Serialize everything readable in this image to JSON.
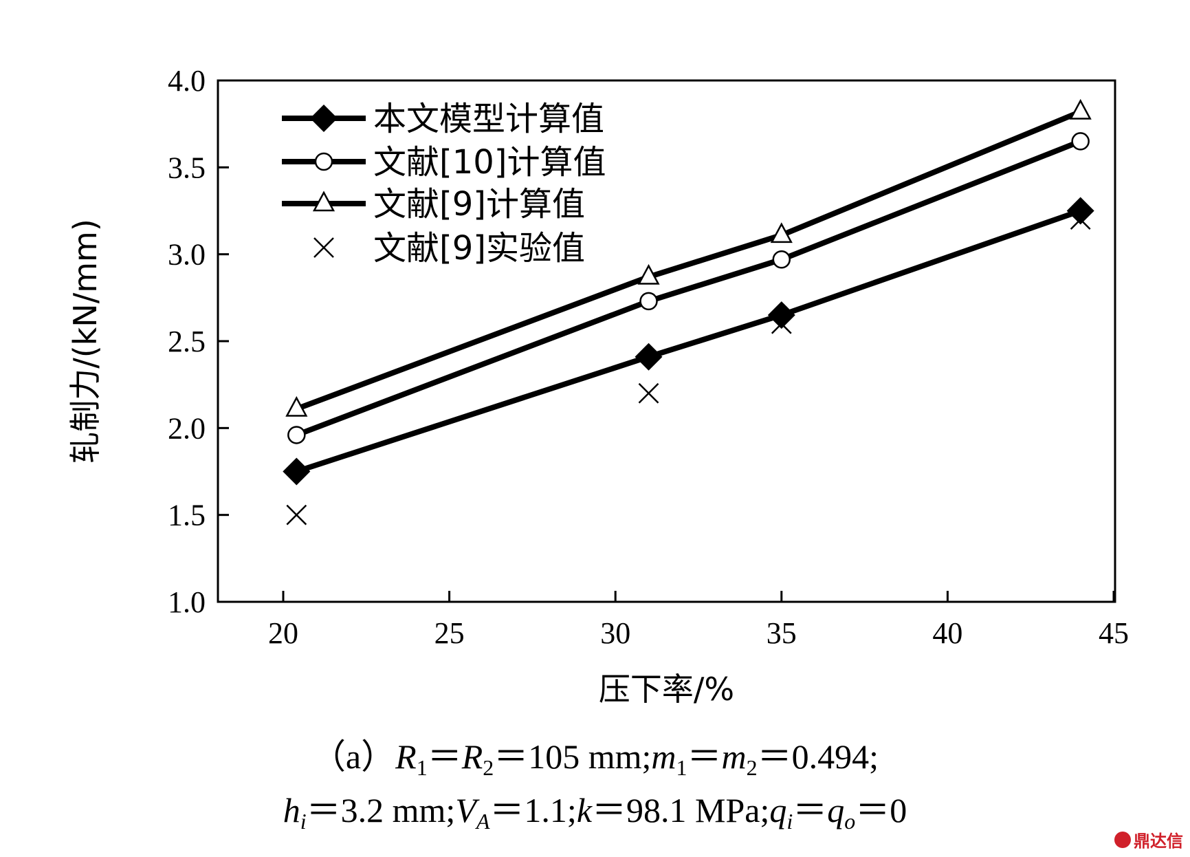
{
  "chart_data": {
    "type": "line",
    "xlabel": "压下率/%",
    "ylabel": "轧制力/(kN/mm)",
    "xlim": [
      18,
      45
    ],
    "ylim": [
      1.0,
      4.0
    ],
    "xticks": [
      20,
      25,
      30,
      35,
      40,
      45
    ],
    "yticks": [
      1.0,
      1.5,
      2.0,
      2.5,
      3.0,
      3.5,
      4.0
    ],
    "xtick_labels": [
      "20",
      "25",
      "30",
      "35",
      "40",
      "45"
    ],
    "ytick_labels": [
      "1.0",
      "1.5",
      "2.0",
      "2.5",
      "3.0",
      "3.5",
      "4.0"
    ],
    "grid": false,
    "legend_position": "top-left",
    "series": [
      {
        "name": "本文模型计算值",
        "marker": "diamond-filled",
        "line": true,
        "x": [
          20.4,
          31,
          35,
          44
        ],
        "y": [
          1.75,
          2.41,
          2.65,
          3.25
        ]
      },
      {
        "name": "文献[10]计算值",
        "marker": "circle-open",
        "line": true,
        "x": [
          20.4,
          31,
          35,
          44
        ],
        "y": [
          1.96,
          2.73,
          2.97,
          3.65
        ]
      },
      {
        "name": "文献[9]计算值",
        "marker": "triangle-open",
        "line": true,
        "x": [
          20.4,
          31,
          35,
          44
        ],
        "y": [
          2.11,
          2.87,
          3.11,
          3.82
        ]
      },
      {
        "name": "文献[9]实验值",
        "marker": "x",
        "line": false,
        "x": [
          20.4,
          31,
          35,
          44
        ],
        "y": [
          1.5,
          2.2,
          2.6,
          3.2
        ]
      }
    ]
  },
  "caption": {
    "line1": {
      "prefix": "（a）",
      "R": "R",
      "sub1": "1",
      "eq1": "＝",
      "sub2": "2",
      "eq2": "＝",
      "r_val": "105 mm;",
      "m": "m",
      "msub1": "1",
      "eq3": "＝",
      "msub2": "2",
      "eq4": "＝",
      "m_val": "0.494;"
    },
    "line2": {
      "h": "h",
      "hsub": "i",
      "eq1": "＝",
      "h_val": "3.2 mm;",
      "V": "V",
      "vsub": "A",
      "eq2": "＝",
      "v_val": "1.1;",
      "k": "k",
      "eq3": "＝",
      "k_val": "98.1 MPa;",
      "q": "q",
      "qsub1": "i",
      "eq4": "＝",
      "qsub2": "o",
      "eq5": "＝",
      "q_val": "0"
    }
  },
  "watermark": {
    "text": "鼎达信",
    "color": "#d0202a"
  }
}
